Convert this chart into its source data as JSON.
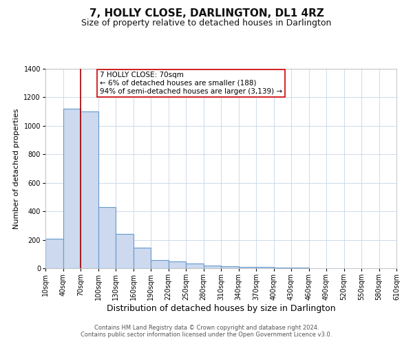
{
  "title": "7, HOLLY CLOSE, DARLINGTON, DL1 4RZ",
  "subtitle": "Size of property relative to detached houses in Darlington",
  "xlabel": "Distribution of detached houses by size in Darlington",
  "ylabel": "Number of detached properties",
  "bin_edges": [
    10,
    40,
    70,
    100,
    130,
    160,
    190,
    220,
    250,
    280,
    310,
    340,
    370,
    400,
    430,
    460,
    490,
    520,
    550,
    580,
    610
  ],
  "bar_heights": [
    210,
    1120,
    1100,
    430,
    240,
    145,
    60,
    50,
    35,
    20,
    15,
    10,
    10,
    5,
    5,
    0,
    0,
    0,
    0,
    0
  ],
  "bar_facecolor": "#ccd9ee",
  "bar_edgecolor": "#6699cc",
  "bar_linewidth": 0.8,
  "vline_x": 70,
  "vline_color": "#aa0000",
  "vline_linewidth": 1.2,
  "annotation_text": "7 HOLLY CLOSE: 70sqm\n← 6% of detached houses are smaller (188)\n94% of semi-detached houses are larger (3,139) →",
  "annotation_box_edgecolor": "#cc0000",
  "annotation_box_facecolor": "white",
  "ylim": [
    0,
    1400
  ],
  "yticks": [
    0,
    200,
    400,
    600,
    800,
    1000,
    1200,
    1400
  ],
  "background_color": "#ffffff",
  "grid_color": "#c5d5e8",
  "footer_line1": "Contains HM Land Registry data © Crown copyright and database right 2024.",
  "footer_line2": "Contains public sector information licensed under the Open Government Licence v3.0.",
  "title_fontsize": 11,
  "subtitle_fontsize": 9,
  "xlabel_fontsize": 9,
  "ylabel_fontsize": 8,
  "tick_fontsize": 7,
  "annotation_fontsize": 7.5,
  "footer_fontsize": 6
}
